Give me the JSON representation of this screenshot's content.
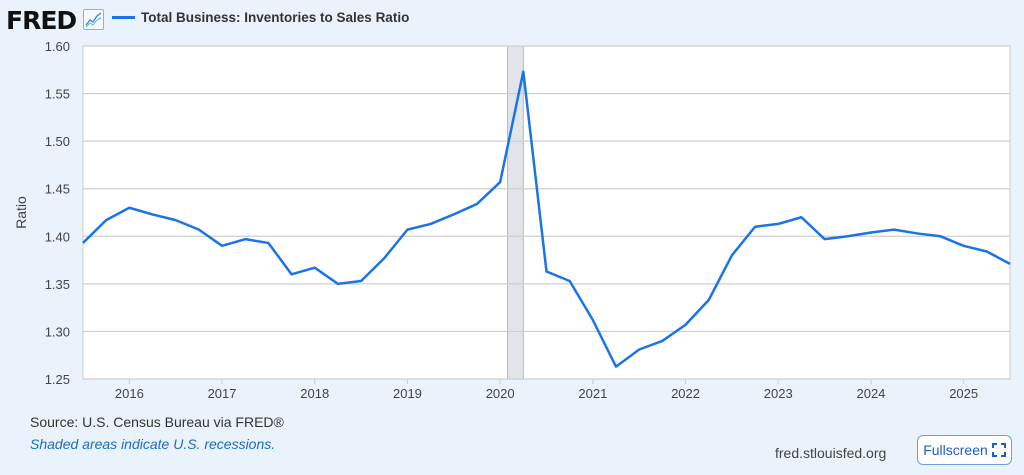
{
  "header": {
    "logo": "FRED",
    "logo_icon": "line-chart-icon"
  },
  "chart_data": {
    "type": "line",
    "title": "",
    "ylabel": "Ratio",
    "xlabel": "",
    "ylim": [
      1.25,
      1.6
    ],
    "xlim": [
      2015.5,
      2025.5
    ],
    "yticks": [
      "1.25",
      "1.30",
      "1.35",
      "1.40",
      "1.45",
      "1.50",
      "1.55",
      "1.60"
    ],
    "xticks": [
      "2016",
      "2017",
      "2018",
      "2019",
      "2020",
      "2021",
      "2022",
      "2023",
      "2024",
      "2025"
    ],
    "grid": true,
    "legend_placement": "top-left",
    "recessions": [
      {
        "start": 2020.08,
        "end": 2020.25
      }
    ],
    "series": [
      {
        "name": "Total Business: Inventories to Sales Ratio",
        "color": "#1b73e8",
        "x": [
          2015.5,
          2015.75,
          2016.0,
          2016.25,
          2016.5,
          2016.75,
          2017.0,
          2017.25,
          2017.5,
          2017.75,
          2018.0,
          2018.25,
          2018.5,
          2018.75,
          2019.0,
          2019.25,
          2019.5,
          2019.75,
          2020.0,
          2020.25,
          2020.5,
          2020.75,
          2021.0,
          2021.25,
          2021.5,
          2021.75,
          2022.0,
          2022.25,
          2022.5,
          2022.75,
          2023.0,
          2023.25,
          2023.5,
          2023.75,
          2024.0,
          2024.25,
          2024.5,
          2024.75,
          2025.0,
          2025.25,
          2025.5
        ],
        "values": [
          1.393,
          1.417,
          1.43,
          1.423,
          1.417,
          1.407,
          1.39,
          1.397,
          1.393,
          1.36,
          1.367,
          1.35,
          1.353,
          1.377,
          1.407,
          1.413,
          1.423,
          1.434,
          1.457,
          1.573,
          1.363,
          1.353,
          1.312,
          1.263,
          1.281,
          1.29,
          1.307,
          1.333,
          1.38,
          1.41,
          1.413,
          1.42,
          1.397,
          1.4,
          1.404,
          1.407,
          1.403,
          1.4,
          1.39,
          1.384,
          1.371
        ]
      }
    ]
  },
  "footer": {
    "source": "Source: U.S. Census Bureau via FRED®",
    "recession_note": "Shaded areas indicate U.S. recessions.",
    "site": "fred.stlouisfed.org",
    "fullscreen_label": "Fullscreen",
    "fullscreen_icon": "expand-icon"
  }
}
